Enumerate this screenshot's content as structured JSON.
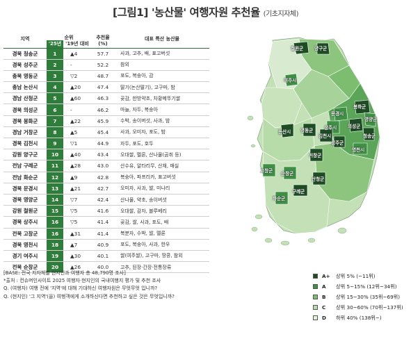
{
  "title": {
    "main": "[그림1] '농산물' 여행자원 추천율",
    "sub": "(기초지자체)"
  },
  "table": {
    "headers": {
      "region": "지역",
      "rank": "순위",
      "rank25": "'25년",
      "rank19": "'19년 대비",
      "score": "추천율",
      "score_unit": "(%)",
      "products": "대표 특산 농산물"
    },
    "rows": [
      {
        "region": "경북 청송군",
        "rank": "1",
        "change": "▲4",
        "score": "57.7",
        "products": "사과, 고추, 배, 표고버섯"
      },
      {
        "region": "경북 성주군",
        "rank": "2",
        "change": "-",
        "score": "52.2",
        "products": "참외"
      },
      {
        "region": "충북 영동군",
        "rank": "3",
        "change": "▽2",
        "score": "48.7",
        "products": "포도, 복숭아, 감"
      },
      {
        "region": "충남 논산시",
        "rank": "4",
        "change": "▲20",
        "score": "47.4",
        "products": "딸기(논산딸기), 고구마, 밤"
      },
      {
        "region": "경남 산청군",
        "rank": "5",
        "change": "▲60",
        "score": "46.3",
        "products": "곶감, 한방약초, 차황메뚜기쌀"
      },
      {
        "region": "경북 의성군",
        "rank": "6",
        "change": "-",
        "score": "46.2",
        "products": "마늘, 자두, 복숭아"
      },
      {
        "region": "경북 봉화군",
        "rank": "7",
        "change": "▲22",
        "score": "45.9",
        "products": "수박, 송이버섯, 사과, 밤"
      },
      {
        "region": "경남 거창군",
        "rank": "8",
        "change": "▲5",
        "score": "45.4",
        "products": "사과, 오미자, 포도, 밤"
      },
      {
        "region": "경북 김천시",
        "rank": "9",
        "change": "▽1",
        "score": "44.9",
        "products": "자두, 포도, 호두"
      },
      {
        "region": "강원 양구군",
        "rank": "10",
        "change": "▲40",
        "score": "43.4",
        "products": "오대쌀, 멜론, 산나물(곰취 등)"
      },
      {
        "region": "전남 구례군",
        "rank": "11",
        "change": "▲28",
        "score": "43.0",
        "products": "산수유, 알타리무, 산채, 매실"
      },
      {
        "region": "전남 화순군",
        "rank": "12",
        "change": "▲9",
        "score": "42.8",
        "products": "복숭아, 파프리카, 표고버섯"
      },
      {
        "region": "경북 문경시",
        "rank": "13",
        "change": "▲21",
        "score": "42.7",
        "products": "오미자, 사과, 쌀, 미나리"
      },
      {
        "region": "경북 영양군",
        "rank": "14",
        "change": "▽7",
        "score": "42.4",
        "products": "산나물, 약초, 송이버섯"
      },
      {
        "region": "강원 철원군",
        "rank": "15",
        "change": "▽5",
        "score": "41.6",
        "products": "오대쌀, 감자, 블루베리"
      },
      {
        "region": "경북 상주시",
        "rank": "16",
        "change": "▽5",
        "score": "41.4",
        "products": "곶감, 쌀, 사과, 포도, 배"
      },
      {
        "region": "전북 고창군",
        "rank": "16",
        "change": "▲31",
        "score": "41.4",
        "products": "복분자, 수박, 쌀, 멜론"
      },
      {
        "region": "경북 영천시",
        "rank": "18",
        "change": "▲7",
        "score": "40.9",
        "products": "포도, 복숭아, 사과, 한우"
      },
      {
        "region": "경기 여주시",
        "rank": "19",
        "change": "▲30",
        "score": "40.1",
        "products": "쌀(여주쌀), 고구마, 땅콩, 참외"
      },
      {
        "region": "전북 순창군",
        "rank": "20",
        "change": "▲26",
        "score": "40.0",
        "products": "고추, 된장·간장·전통장류"
      }
    ]
  },
  "notes": [
    "[BASE: 전국 지자체별 현지인과 여행자 총 48,790명 조사]",
    "*출처 : 컨슈머인사이트 2025 여행자·현지인의 국내여행지 평가 및 추천 조사",
    "Q. (여행자) 여행 전에 '지역'에 대해 기대하신 여행자원은 무엇무엇 입니까?",
    "Q. (현지인) '그 지역'(을) 여행객에게 소개하신다면 추천하고 싶은 것은 무엇입니까?"
  ],
  "map_labels": [
    {
      "id": "cheorwon",
      "text": "철원군"
    },
    {
      "id": "yanggu",
      "text": "양구군"
    },
    {
      "id": "yeoju",
      "text": "여주시"
    },
    {
      "id": "bonghwa",
      "text": "봉화군"
    },
    {
      "id": "yeongyang",
      "text": "영양군"
    },
    {
      "id": "mungyeong",
      "text": "문경시"
    },
    {
      "id": "uiseong",
      "text": "의성군"
    },
    {
      "id": "cheongsong",
      "text": "청송군"
    },
    {
      "id": "sangju",
      "text": "상주시"
    },
    {
      "id": "nonsan",
      "text": "논산시"
    },
    {
      "id": "yeongdong",
      "text": "영동군"
    },
    {
      "id": "gimcheon",
      "text": "김천시"
    },
    {
      "id": "seongju",
      "text": "성주군"
    },
    {
      "id": "yeongcheon",
      "text": "영천시"
    },
    {
      "id": "geochang",
      "text": "거창군"
    },
    {
      "id": "gochang",
      "text": "고창군"
    },
    {
      "id": "sunchang",
      "text": "순창군"
    },
    {
      "id": "sancheong",
      "text": "산청군"
    },
    {
      "id": "gurye",
      "text": "구례군"
    },
    {
      "id": "hwasun",
      "text": "화순군"
    }
  ],
  "legend": [
    {
      "grade": "A+",
      "label": "상위 5% (~11위)",
      "color": "#1e4d25"
    },
    {
      "grade": "A",
      "label": "상위 5~15% (12위~34위)",
      "color": "#3f8f45"
    },
    {
      "grade": "B",
      "label": "상위 15~30% (35위~69위)",
      "color": "#7cbd70"
    },
    {
      "grade": "C",
      "label": "상위 30~60% (70위~137위)",
      "color": "#b7dca9"
    },
    {
      "grade": "D",
      "label": "하위 40% (138위~)",
      "color": "#e2f0dc"
    }
  ],
  "colors": {
    "rank_cell": "#2f7d3b",
    "header_line": "#2e6b3a"
  }
}
